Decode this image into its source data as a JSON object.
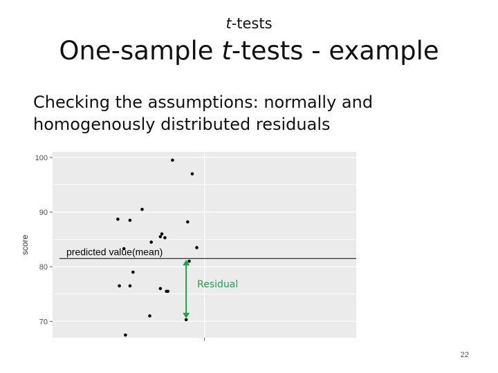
{
  "slide": {
    "header_em": "t",
    "header_rest": "-tests",
    "title_pre": "One-sample ",
    "title_em": "t",
    "title_post": "-tests - example",
    "body": "Checking the assumptions: normally and homogenously distributed residuals",
    "page_number": "22"
  },
  "colors": {
    "panel": "#ebebeb",
    "grid": "#ffffff",
    "point": "#000000",
    "arrow": "#1aa34a",
    "annotation": "#1aa34a"
  },
  "chart_data": {
    "type": "scatter",
    "ylabel": "score",
    "ylim": [
      67,
      101
    ],
    "yticks": [
      70,
      80,
      90,
      100
    ],
    "xticks": [
      ""
    ],
    "grid": true,
    "legend": "none",
    "x": [
      0.79,
      0.92,
      0.59,
      0.51,
      0.43,
      0.72,
      0.71,
      0.89,
      0.74,
      0.9,
      0.95,
      0.65,
      0.47,
      0.53,
      0.44,
      0.51,
      0.71,
      0.75,
      0.76,
      0.64,
      0.48,
      0.88
    ],
    "y": [
      99.5,
      97.0,
      90.5,
      88.5,
      88.7,
      86.0,
      85.5,
      88.2,
      85.3,
      81.0,
      83.5,
      84.5,
      83.3,
      79.0,
      76.5,
      76.5,
      76.0,
      75.5,
      75.5,
      71.0,
      67.5,
      70.3
    ],
    "reference_line": {
      "y": 81.5,
      "label": "predicted value(mean)"
    },
    "annotation": {
      "label": "Residual",
      "x": 0.88,
      "y_from": 81.5,
      "y_to": 70.3
    }
  }
}
